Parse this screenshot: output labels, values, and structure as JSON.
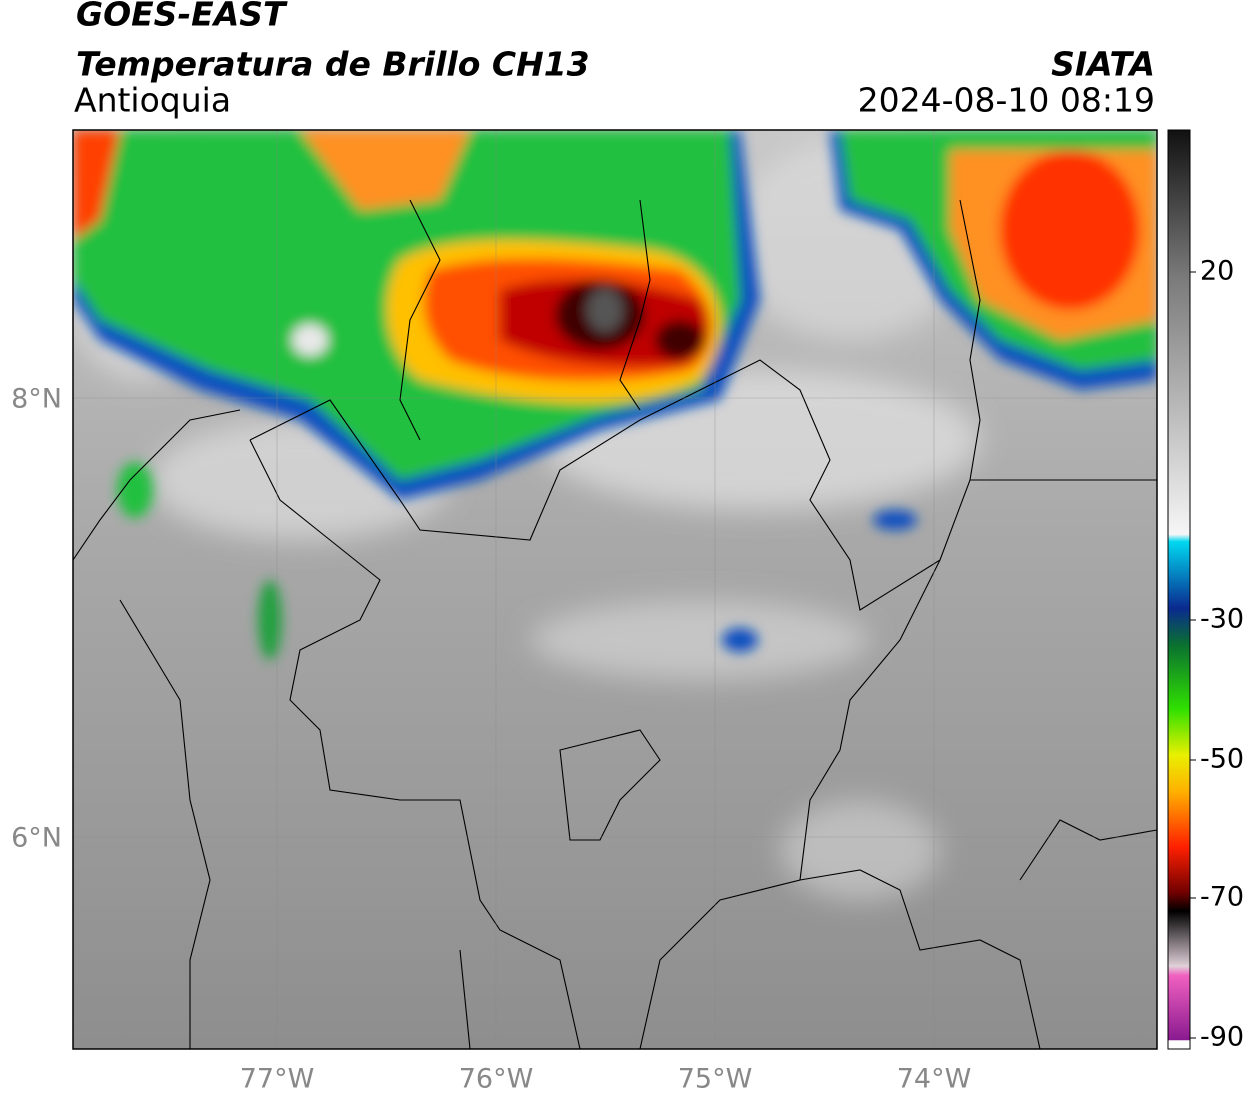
{
  "header": {
    "title": "GOES-EAST",
    "subtitle": "Temperatura de Brillo CH13",
    "region": "Antioquia",
    "source": "SIATA",
    "datetime": "2024-08-10 08:19"
  },
  "map": {
    "lat_labels": [
      "8°N",
      "6°N"
    ],
    "lon_labels": [
      "77°W",
      "76°W",
      "75°W",
      "74°W"
    ]
  },
  "colorbar": {
    "labels": [
      "20",
      "-30",
      "-50",
      "-70",
      "-90"
    ]
  }
}
